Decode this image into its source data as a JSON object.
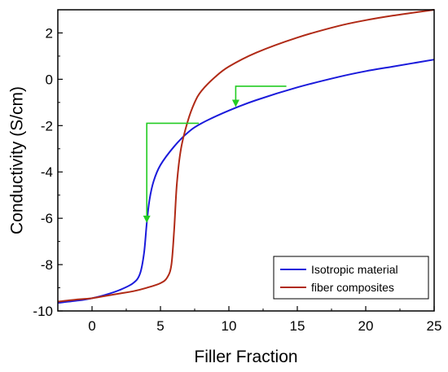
{
  "chart_data": {
    "type": "line",
    "title": "",
    "xlabel": "Filler Fraction",
    "ylabel": "Conductivity (S/cm)",
    "xlim": [
      -2.5,
      25
    ],
    "ylim": [
      -10,
      3
    ],
    "xticks": [
      0,
      5,
      10,
      15,
      20,
      25
    ],
    "yticks": [
      -10,
      -8,
      -6,
      -4,
      -2,
      0,
      2
    ],
    "xtick_labels": [
      "0",
      "5",
      "10",
      "15",
      "20",
      "25"
    ],
    "ytick_labels": [
      "-10",
      "-8",
      "-6",
      "-4",
      "-2",
      "0",
      "2"
    ],
    "grid": false,
    "legend_position": "bottom-right",
    "series": [
      {
        "name": "Isotropic material",
        "color": "#1a1adb",
        "x": [
          -2.5,
          -1,
          0,
          1,
          2,
          3,
          3.5,
          3.8,
          4.0,
          4.2,
          4.5,
          5,
          6,
          7,
          8,
          10,
          12,
          15,
          18,
          20,
          22,
          25
        ],
        "y": [
          -9.65,
          -9.55,
          -9.45,
          -9.3,
          -9.1,
          -8.8,
          -8.4,
          -7.5,
          -6.2,
          -5.2,
          -4.4,
          -3.7,
          -2.9,
          -2.3,
          -1.9,
          -1.35,
          -0.9,
          -0.35,
          0.1,
          0.35,
          0.55,
          0.85
        ]
      },
      {
        "name": "fiber composites",
        "color": "#b02a16",
        "x": [
          -2.5,
          -1,
          0,
          1,
          2,
          3,
          4,
          5,
          5.5,
          5.8,
          6.0,
          6.2,
          6.5,
          7,
          7.5,
          8,
          9,
          10,
          12,
          15,
          18,
          20,
          22,
          25
        ],
        "y": [
          -9.6,
          -9.5,
          -9.45,
          -9.35,
          -9.25,
          -9.15,
          -9.0,
          -8.8,
          -8.55,
          -8.0,
          -6.5,
          -4.5,
          -3.0,
          -1.8,
          -1.0,
          -0.5,
          0.1,
          0.55,
          1.15,
          1.8,
          2.3,
          2.55,
          2.75,
          3.0
        ]
      }
    ],
    "annotations": [
      {
        "type": "step-arrow",
        "color": "#22cc22",
        "x_start": 7.8,
        "x_corner": 4.0,
        "y_top": -1.9,
        "y_end": -6.2
      },
      {
        "type": "step-arrow",
        "color": "#22cc22",
        "x_start": 14.2,
        "x_corner": 10.5,
        "y_top": -0.3,
        "y_end": -1.2
      }
    ]
  }
}
